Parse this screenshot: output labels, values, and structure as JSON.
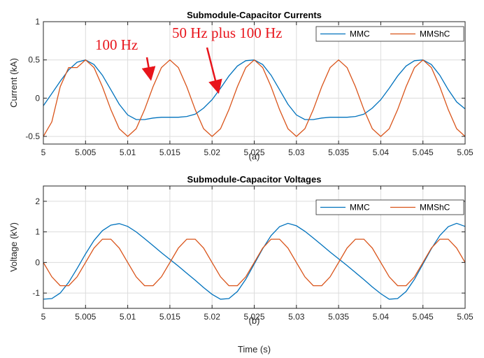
{
  "chart_data": [
    {
      "type": "line",
      "title": "Submodule-Capacitor Currents",
      "ylabel": "Current (kA)",
      "sublabel": "(a)",
      "xlim": [
        5,
        5.05
      ],
      "ylim": [
        -0.6,
        1
      ],
      "xticks": [
        5,
        5.005,
        5.01,
        5.015,
        5.02,
        5.025,
        5.03,
        5.035,
        5.04,
        5.045,
        5.05
      ],
      "xtick_labels": [
        "5",
        "5.005",
        "5.01",
        "5.015",
        "5.02",
        "5.025",
        "5.03",
        "5.035",
        "5.04",
        "5.045",
        "5.05"
      ],
      "yticks": [
        -0.5,
        0,
        0.5,
        1
      ],
      "ytick_labels": [
        "-0.5",
        "0",
        "0.5",
        "1"
      ],
      "grid": true,
      "legend_position": "top-right",
      "series": [
        {
          "name": "MMC",
          "color": "#0072BD",
          "x": [
            5,
            5.001,
            5.002,
            5.003,
            5.004,
            5.005,
            5.006,
            5.007,
            5.008,
            5.009,
            5.01,
            5.011,
            5.012,
            5.013,
            5.014,
            5.015,
            5.016,
            5.017,
            5.018,
            5.019,
            5.02,
            5.021,
            5.022,
            5.023,
            5.024,
            5.025,
            5.026,
            5.027,
            5.028,
            5.029,
            5.03,
            5.031,
            5.032,
            5.033,
            5.034,
            5.035,
            5.036,
            5.037,
            5.038,
            5.039,
            5.04,
            5.041,
            5.042,
            5.043,
            5.044,
            5.045,
            5.046,
            5.047,
            5.048,
            5.049,
            5.05
          ],
          "y": [
            -0.1,
            0.06,
            0.22,
            0.37,
            0.47,
            0.5,
            0.44,
            0.3,
            0.11,
            -0.08,
            -0.22,
            -0.28,
            -0.28,
            -0.26,
            -0.25,
            -0.25,
            -0.25,
            -0.24,
            -0.21,
            -0.13,
            -0.02,
            0.13,
            0.29,
            0.42,
            0.49,
            0.5,
            0.44,
            0.3,
            0.11,
            -0.08,
            -0.22,
            -0.28,
            -0.28,
            -0.26,
            -0.25,
            -0.25,
            -0.25,
            -0.24,
            -0.21,
            -0.13,
            -0.02,
            0.13,
            0.29,
            0.42,
            0.49,
            0.5,
            0.44,
            0.3,
            0.11,
            -0.05,
            -0.14
          ]
        },
        {
          "name": "MMShC",
          "color": "#D95319",
          "x": [
            5,
            5.001,
            5.002,
            5.003,
            5.004,
            5.005,
            5.006,
            5.007,
            5.008,
            5.009,
            5.01,
            5.011,
            5.012,
            5.013,
            5.014,
            5.015,
            5.016,
            5.017,
            5.018,
            5.019,
            5.02,
            5.021,
            5.022,
            5.023,
            5.024,
            5.025,
            5.026,
            5.027,
            5.028,
            5.029,
            5.03,
            5.031,
            5.032,
            5.033,
            5.034,
            5.035,
            5.036,
            5.037,
            5.038,
            5.039,
            5.04,
            5.041,
            5.042,
            5.043,
            5.044,
            5.045,
            5.046,
            5.047,
            5.048,
            5.049,
            5.05
          ],
          "y": [
            -0.5,
            -0.31,
            0.15,
            0.4,
            0.4,
            0.5,
            0.4,
            0.15,
            -0.15,
            -0.4,
            -0.5,
            -0.4,
            -0.15,
            0.15,
            0.4,
            0.5,
            0.4,
            0.15,
            -0.15,
            -0.4,
            -0.5,
            -0.4,
            -0.15,
            0.15,
            0.4,
            0.5,
            0.4,
            0.15,
            -0.15,
            -0.4,
            -0.5,
            -0.4,
            -0.15,
            0.15,
            0.4,
            0.5,
            0.4,
            0.15,
            -0.15,
            -0.4,
            -0.5,
            -0.4,
            -0.15,
            0.15,
            0.4,
            0.5,
            0.4,
            0.15,
            -0.15,
            -0.4,
            -0.5
          ]
        }
      ],
      "annotations": [
        {
          "text": "100 Hz",
          "arrow_to": [
            5.0127,
            0.27
          ]
        },
        {
          "text": "50 Hz plus 100 Hz",
          "arrow_to": [
            5.0207,
            0.1
          ]
        }
      ]
    },
    {
      "type": "line",
      "title": "Submodule-Capacitor Voltages",
      "ylabel": "Voltage (kV)",
      "xlabel": "Time (s)",
      "sublabel": "(b)",
      "xlim": [
        5,
        5.05
      ],
      "ylim": [
        -1.5,
        2.5
      ],
      "xticks": [
        5,
        5.005,
        5.01,
        5.015,
        5.02,
        5.025,
        5.03,
        5.035,
        5.04,
        5.045,
        5.05
      ],
      "xtick_labels": [
        "5",
        "5.005",
        "5.01",
        "5.015",
        "5.02",
        "5.025",
        "5.03",
        "5.035",
        "5.04",
        "5.045",
        "5.05"
      ],
      "yticks": [
        -1,
        0,
        1,
        2
      ],
      "ytick_labels": [
        "-1",
        "0",
        "1",
        "2"
      ],
      "grid": true,
      "legend_position": "top-right",
      "series": [
        {
          "name": "MMC",
          "color": "#0072BD",
          "x": [
            5,
            5.001,
            5.002,
            5.003,
            5.004,
            5.005,
            5.006,
            5.007,
            5.008,
            5.009,
            5.01,
            5.011,
            5.012,
            5.013,
            5.014,
            5.015,
            5.016,
            5.017,
            5.018,
            5.019,
            5.02,
            5.021,
            5.022,
            5.023,
            5.024,
            5.025,
            5.026,
            5.027,
            5.028,
            5.029,
            5.03,
            5.031,
            5.032,
            5.033,
            5.034,
            5.035,
            5.036,
            5.037,
            5.038,
            5.039,
            5.04,
            5.041,
            5.042,
            5.043,
            5.044,
            5.045,
            5.046,
            5.047,
            5.048,
            5.049,
            5.05
          ],
          "y": [
            -1.2,
            -1.18,
            -1.0,
            -0.65,
            -0.2,
            0.28,
            0.72,
            1.04,
            1.22,
            1.27,
            1.18,
            1.0,
            0.78,
            0.55,
            0.32,
            0.1,
            -0.12,
            -0.35,
            -0.58,
            -0.82,
            -1.04,
            -1.2,
            -1.18,
            -0.95,
            -0.55,
            -0.05,
            0.45,
            0.88,
            1.17,
            1.28,
            1.2,
            1.02,
            0.8,
            0.57,
            0.34,
            0.12,
            -0.1,
            -0.33,
            -0.56,
            -0.8,
            -1.02,
            -1.2,
            -1.18,
            -0.95,
            -0.55,
            -0.05,
            0.45,
            0.88,
            1.17,
            1.28,
            1.18
          ]
        },
        {
          "name": "MMShC",
          "color": "#D95319",
          "x": [
            5,
            5.001,
            5.002,
            5.003,
            5.004,
            5.005,
            5.006,
            5.007,
            5.008,
            5.009,
            5.01,
            5.011,
            5.012,
            5.013,
            5.014,
            5.015,
            5.016,
            5.017,
            5.018,
            5.019,
            5.02,
            5.021,
            5.022,
            5.023,
            5.024,
            5.025,
            5.026,
            5.027,
            5.028,
            5.029,
            5.03,
            5.031,
            5.032,
            5.033,
            5.034,
            5.035,
            5.036,
            5.037,
            5.038,
            5.039,
            5.04,
            5.041,
            5.042,
            5.043,
            5.044,
            5.045,
            5.046,
            5.047,
            5.048,
            5.049,
            5.05
          ],
          "y": [
            0,
            -0.47,
            -0.76,
            -0.76,
            -0.47,
            0,
            0.47,
            0.76,
            0.76,
            0.47,
            0,
            -0.47,
            -0.76,
            -0.76,
            -0.47,
            0,
            0.47,
            0.76,
            0.76,
            0.47,
            0,
            -0.47,
            -0.76,
            -0.76,
            -0.47,
            0,
            0.47,
            0.76,
            0.76,
            0.47,
            0,
            -0.47,
            -0.76,
            -0.76,
            -0.47,
            0,
            0.47,
            0.76,
            0.76,
            0.47,
            0,
            -0.47,
            -0.76,
            -0.76,
            -0.47,
            0,
            0.47,
            0.76,
            0.76,
            0.47,
            0
          ]
        }
      ]
    }
  ]
}
